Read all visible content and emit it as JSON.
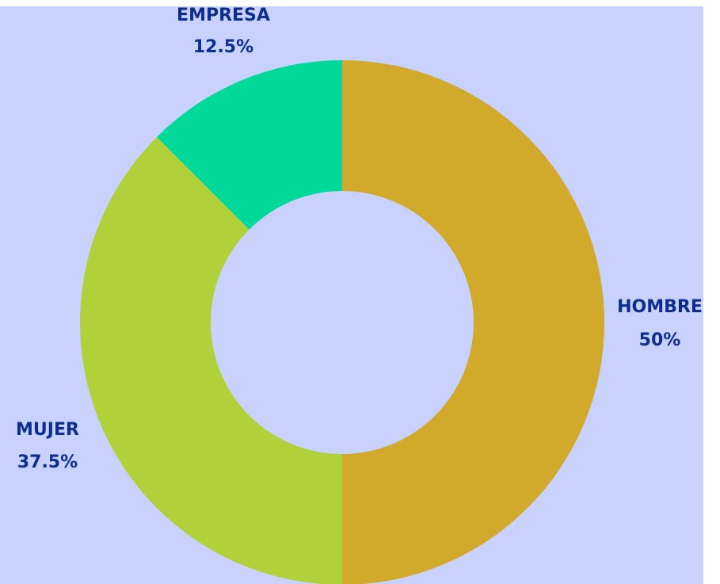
{
  "chart_data": {
    "type": "donut",
    "categories": [
      "HOMBRE",
      "MUJER",
      "EMPRESA"
    ],
    "values": [
      50,
      37.5,
      12.5
    ],
    "value_labels": [
      "50%",
      "37.5%",
      "12.5%"
    ],
    "colors": [
      "#d1a92b",
      "#b0d13a",
      "#00d99a"
    ]
  }
}
